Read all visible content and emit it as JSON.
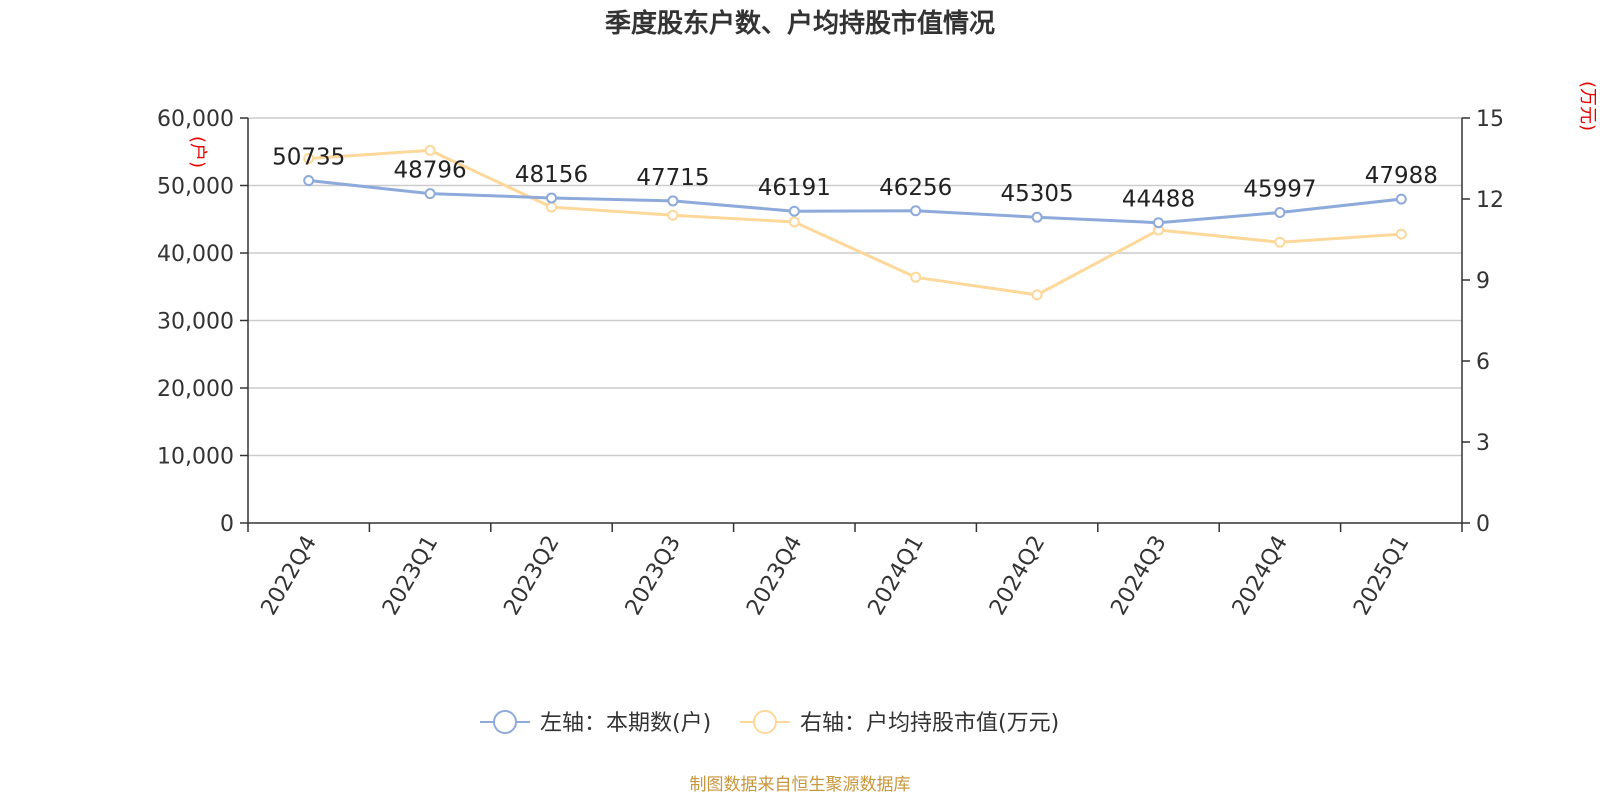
{
  "chart_data": {
    "type": "line",
    "title": "季度股东户数、户均持股市值情况",
    "categories": [
      "2022Q4",
      "2023Q1",
      "2023Q2",
      "2023Q3",
      "2023Q4",
      "2024Q1",
      "2024Q2",
      "2024Q3",
      "2024Q4",
      "2025Q1"
    ],
    "series": [
      {
        "name": "左轴：本期数(户)",
        "axis": "left",
        "color": "#8eaadb",
        "values": [
          50735,
          48796,
          48156,
          47715,
          46191,
          46256,
          45305,
          44488,
          45997,
          47988
        ],
        "data_labels": [
          "50735",
          "48796",
          "48156",
          "47715",
          "46191",
          "46256",
          "45305",
          "44488",
          "45997",
          "47988"
        ]
      },
      {
        "name": "右轴：户均持股市值(万元)",
        "axis": "right",
        "color": "#fdd89a",
        "values": [
          13.5,
          13.8,
          11.7,
          11.4,
          11.15,
          9.1,
          8.45,
          10.85,
          10.4,
          10.7
        ]
      }
    ],
    "left_axis": {
      "unit": "(户)",
      "range": [
        0,
        60000
      ],
      "ticks": [
        0,
        10000,
        20000,
        30000,
        40000,
        50000,
        60000
      ],
      "tick_labels": [
        "0",
        "10,000",
        "20,000",
        "30,000",
        "40,000",
        "50,000",
        "60,000"
      ]
    },
    "right_axis": {
      "unit": "(万元)",
      "range": [
        0,
        15
      ],
      "ticks": [
        0,
        3,
        6,
        9,
        12,
        15
      ],
      "tick_labels": [
        "0",
        "3",
        "6",
        "9",
        "12",
        "15"
      ]
    },
    "grid": true,
    "legend_position": "bottom-center",
    "unit_color": "#e60000"
  },
  "footer": {
    "source": "制图数据来自恒生聚源数据库",
    "color": "#c8963c"
  }
}
